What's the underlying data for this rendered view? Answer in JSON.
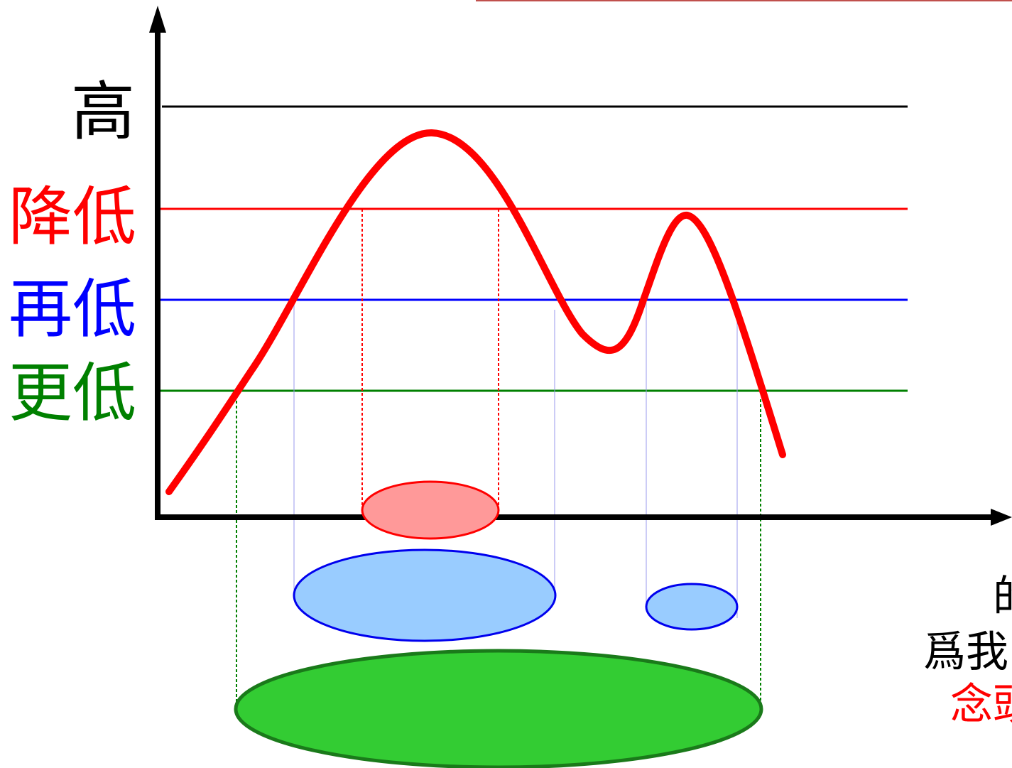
{
  "labels": {
    "high": "高",
    "lower": "降低",
    "even_lower": "再低",
    "lowest": "更低"
  },
  "right_text": {
    "line1": "的",
    "line2": "爲我",
    "line3": "念頭"
  },
  "colors": {
    "axis": "#000000",
    "high_line": "#000000",
    "lower": "#ff0000",
    "even_lower": "#0000ff",
    "lowest": "#008000",
    "curve": "#ff0000",
    "red_fill": "#ff9999",
    "blue_fill": "#99ccff",
    "green_fill": "#33cc33",
    "top_bar": "#c0504d"
  }
}
